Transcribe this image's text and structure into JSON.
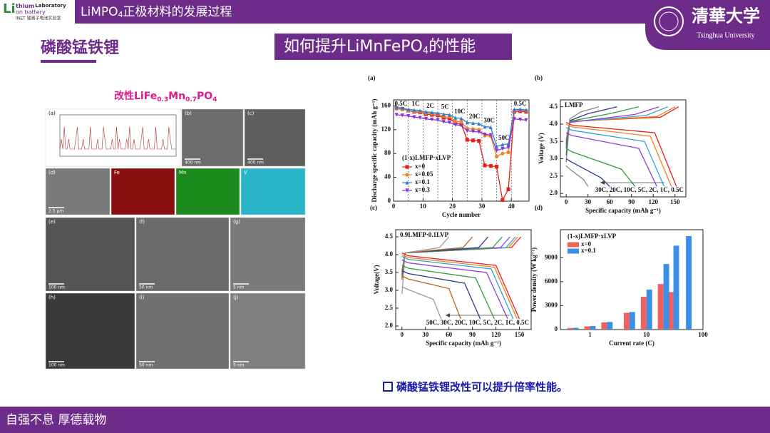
{
  "header": {
    "title_main": "LiMPO",
    "title_sub": "4",
    "title_rest": "正极材料的发展过程"
  },
  "logo": {
    "li": "Li",
    "line1": "thium",
    "line1b": "Laboratory",
    "line2": "on battery",
    "line3": "INET 锂离子电池实验室"
  },
  "university": {
    "name_cn": "清華大学",
    "name_en": "Tsinghua University"
  },
  "section_title": "磷酸锰铁锂",
  "headline": {
    "main": "如何提升LiMnFePO",
    "sub": "4",
    "rest": "的性能"
  },
  "figure_caption": {
    "p1": "改性LiFe",
    "s1": "0.3",
    "p2": "Mn",
    "s2": "0.7",
    "p3": "PO",
    "s3": "4"
  },
  "panels": [
    {
      "label": "(a)"
    },
    {
      "label": "(b)",
      "scale": "400 nm"
    },
    {
      "label": "(c)",
      "scale": "400 nm"
    },
    {
      "label": "(d)",
      "scale": "2.5 μm"
    },
    {
      "label": "Fe"
    },
    {
      "label": "Mn"
    },
    {
      "label": "V"
    },
    {
      "label": "(e)",
      "scale": "100 nm"
    },
    {
      "label": "(f)",
      "scale": "50 nm"
    },
    {
      "label": "(g)",
      "scale": "5 nm"
    },
    {
      "label": "(h)",
      "scale": "100 nm"
    },
    {
      "label": "(i)",
      "scale": "50 nm"
    },
    {
      "label": "(j)",
      "scale": "5 nm"
    }
  ],
  "conclusion": "磷酸锰铁锂改性可以提升倍率性能。",
  "footer": "自强不息 厚德载物",
  "chart_data": [
    {
      "type": "line",
      "panel": "(a)",
      "xlabel": "Cycle number",
      "ylabel": "Discharge specific capacity (mAh g⁻¹)",
      "xlim": [
        0,
        46
      ],
      "ylim": [
        0,
        170
      ],
      "xticks": [
        0,
        10,
        20,
        30,
        40
      ],
      "yticks": [
        0,
        40,
        80,
        120,
        160
      ],
      "legend_title": "(1-x)LMFP·xLVP",
      "rate_segments": [
        {
          "label": "0.5C",
          "start": 0,
          "end": 5
        },
        {
          "label": "1C",
          "start": 5,
          "end": 10
        },
        {
          "label": "2C",
          "start": 10,
          "end": 15
        },
        {
          "label": "5C",
          "start": 15,
          "end": 20
        },
        {
          "label": "10C",
          "start": 20,
          "end": 25
        },
        {
          "label": "20C",
          "start": 25,
          "end": 30
        },
        {
          "label": "30C",
          "start": 30,
          "end": 35
        },
        {
          "label": "50C",
          "start": 35,
          "end": 40
        },
        {
          "label": "0.5C",
          "start": 40,
          "end": 46
        }
      ],
      "x": [
        1,
        3,
        5,
        7,
        9,
        11,
        13,
        15,
        17,
        19,
        21,
        23,
        25,
        27,
        29,
        31,
        33,
        35,
        37,
        39,
        41,
        43,
        45
      ],
      "series": [
        {
          "name": "x=0",
          "color": "#e8201a",
          "marker": "s",
          "values": [
            156,
            155,
            152,
            150,
            149,
            146,
            145,
            144,
            140,
            139,
            131,
            129,
            103,
            102,
            101,
            60,
            59,
            58,
            2,
            20,
            150,
            151,
            150
          ]
        },
        {
          "name": "x=0.05",
          "color": "#f58220",
          "marker": "o",
          "values": [
            155,
            154,
            152,
            151,
            150,
            148,
            147,
            146,
            143,
            142,
            134,
            133,
            122,
            121,
            120,
            110,
            109,
            75,
            80,
            82,
            152,
            153,
            152
          ]
        },
        {
          "name": "x=0.1",
          "color": "#2a7fd4",
          "marker": "^",
          "values": [
            157,
            156,
            154,
            153,
            152,
            150,
            149,
            148,
            146,
            145,
            140,
            139,
            132,
            131,
            130,
            125,
            124,
            92,
            95,
            96,
            154,
            154,
            153
          ]
        },
        {
          "name": "x=0.3",
          "color": "#8b2fd6",
          "marker": "v",
          "values": [
            145,
            144,
            143,
            141,
            140,
            138,
            137,
            136,
            133,
            132,
            128,
            127,
            118,
            117,
            116,
            112,
            111,
            85,
            88,
            90,
            138,
            137,
            136
          ]
        }
      ]
    },
    {
      "type": "line",
      "panel": "(b)",
      "xlabel": "Specific capacity (mAh g⁻¹)",
      "ylabel": "Voltage (V)",
      "xlim": [
        -8,
        165
      ],
      "ylim": [
        1.9,
        4.7
      ],
      "xticks": [
        0,
        30,
        60,
        90,
        120,
        150
      ],
      "yticks": [
        {
          "value": 2,
          "label": "2.0"
        },
        2.5,
        {
          "value": 3,
          "label": "3.0"
        },
        3.5,
        {
          "value": 4,
          "label": "4.0"
        },
        4.5
      ],
      "title": "LMFP",
      "rates": "30C, 20C, 10C, 5C, 2C, 1C, 0.5C",
      "series": [
        {
          "color": "#e8201a",
          "x": [
            0,
            5,
            130,
            155
          ],
          "values": [
            3.55,
            4.08,
            4.2,
            4.5
          ]
        },
        {
          "color": "#f58220",
          "x": [
            0,
            5,
            125,
            150
          ],
          "values": [
            3.5,
            4.07,
            4.22,
            4.5
          ]
        },
        {
          "color": "#29a3dd",
          "x": [
            0,
            5,
            110,
            140
          ],
          "values": [
            3.45,
            4.06,
            4.25,
            4.5
          ]
        },
        {
          "color": "#8b3fd9",
          "x": [
            0,
            5,
            95,
            128
          ],
          "values": [
            3.4,
            4.05,
            4.28,
            4.5
          ]
        },
        {
          "color": "#2e9e3a",
          "x": [
            0,
            5,
            60,
            100
          ],
          "values": [
            3.3,
            4.08,
            4.3,
            4.5
          ]
        },
        {
          "color": "#2b3a8c",
          "x": [
            0,
            5,
            30,
            70
          ],
          "values": [
            3.1,
            4.1,
            4.3,
            4.5
          ]
        },
        {
          "color": "#888888",
          "x": [
            0,
            5,
            20,
            45
          ],
          "values": [
            2.9,
            4.15,
            4.35,
            4.5
          ]
        },
        {
          "color": "#e8201a",
          "x": [
            0,
            8,
            122,
            152
          ],
          "values": [
            4.05,
            3.97,
            3.75,
            2.2
          ]
        },
        {
          "color": "#f58220",
          "x": [
            0,
            8,
            116,
            145
          ],
          "values": [
            4.0,
            3.92,
            3.65,
            2.2
          ]
        },
        {
          "color": "#29a3dd",
          "x": [
            0,
            8,
            108,
            135
          ],
          "values": [
            3.9,
            3.82,
            3.5,
            2.2
          ]
        },
        {
          "color": "#8b3fd9",
          "x": [
            0,
            8,
            100,
            125
          ],
          "values": [
            3.75,
            3.67,
            3.3,
            2.2
          ]
        },
        {
          "color": "#2e9e3a",
          "x": [
            0,
            8,
            76,
            95
          ],
          "values": [
            3.3,
            3.2,
            2.7,
            2.2
          ]
        },
        {
          "color": "#2b3a8c",
          "x": [
            0,
            8,
            48,
            60
          ],
          "values": [
            3.0,
            2.9,
            2.45,
            2.2
          ]
        },
        {
          "color": "#888888",
          "x": [
            0,
            5,
            24,
            30
          ],
          "values": [
            2.8,
            2.7,
            2.4,
            2.2
          ]
        }
      ]
    },
    {
      "type": "line",
      "panel": "(c)",
      "xlabel": "Specific capacity (mAh g⁻¹)",
      "ylabel": "Voltage(V)",
      "xlim": [
        -8,
        165
      ],
      "ylim": [
        1.9,
        4.7
      ],
      "xticks": [
        0,
        30,
        60,
        90,
        120,
        150
      ],
      "yticks": [
        {
          "value": 2,
          "label": "2.0"
        },
        2.5,
        {
          "value": 3,
          "label": "3.0"
        },
        3.5,
        {
          "value": 4,
          "label": "4.0"
        },
        4.5
      ],
      "title": "0.9LMFP·0.1LVP",
      "rates": "50C, 30C, 20C, 10C, 5C, 2C, 1C, 0.5C",
      "series": [
        {
          "color": "#e8201a",
          "x": [
            0,
            4,
            140,
            152
          ],
          "values": [
            3.55,
            4.05,
            4.2,
            4.5
          ]
        },
        {
          "color": "#f58220",
          "x": [
            0,
            4,
            136,
            148
          ],
          "values": [
            3.5,
            4.05,
            4.2,
            4.5
          ]
        },
        {
          "color": "#29a3dd",
          "x": [
            0,
            4,
            133,
            145
          ],
          "values": [
            3.5,
            4.05,
            4.2,
            4.5
          ]
        },
        {
          "color": "#8b3fd9",
          "x": [
            0,
            4,
            126,
            138
          ],
          "values": [
            3.45,
            4.05,
            4.2,
            4.5
          ]
        },
        {
          "color": "#2e9e3a",
          "x": [
            0,
            4,
            116,
            128
          ],
          "values": [
            3.4,
            4.05,
            4.2,
            4.5
          ]
        },
        {
          "color": "#2b3a8c",
          "x": [
            0,
            4,
            98,
            110
          ],
          "values": [
            3.35,
            4.05,
            4.2,
            4.5
          ]
        },
        {
          "color": "#b5651d",
          "x": [
            0,
            4,
            78,
            90
          ],
          "values": [
            3.3,
            4.05,
            4.2,
            4.5
          ]
        },
        {
          "color": "#999999",
          "x": [
            0,
            4,
            48,
            60
          ],
          "values": [
            2.9,
            4.05,
            4.2,
            4.5
          ]
        },
        {
          "color": "#e8201a",
          "x": [
            0,
            8,
            120,
            150
          ],
          "values": [
            4.05,
            3.97,
            3.7,
            2.2
          ]
        },
        {
          "color": "#f58220",
          "x": [
            0,
            8,
            118,
            147
          ],
          "values": [
            4.0,
            3.92,
            3.65,
            2.2
          ]
        },
        {
          "color": "#29a3dd",
          "x": [
            0,
            8,
            114,
            142
          ],
          "values": [
            3.95,
            3.87,
            3.6,
            2.2
          ]
        },
        {
          "color": "#8b3fd9",
          "x": [
            0,
            8,
            108,
            135
          ],
          "values": [
            3.85,
            3.77,
            3.5,
            2.2
          ]
        },
        {
          "color": "#2e9e3a",
          "x": [
            0,
            8,
            94,
            118
          ],
          "values": [
            3.7,
            3.62,
            3.35,
            2.2
          ]
        },
        {
          "color": "#2b3a8c",
          "x": [
            0,
            8,
            80,
            100
          ],
          "values": [
            3.55,
            3.47,
            3.2,
            2.2
          ]
        },
        {
          "color": "#b5651d",
          "x": [
            0,
            8,
            60,
            75
          ],
          "values": [
            3.4,
            3.32,
            3.05,
            2.2
          ]
        },
        {
          "color": "#999999",
          "x": [
            0,
            8,
            40,
            50
          ],
          "values": [
            3.1,
            3.02,
            2.75,
            2.2
          ]
        }
      ]
    },
    {
      "type": "bar",
      "panel": "(d)",
      "xlabel": "Current rate (C)",
      "ylabel": "Power density (W kg⁻¹)",
      "xscale": "log",
      "xlim": [
        0.3,
        100
      ],
      "ylim": [
        0,
        12500
      ],
      "xticks": [
        1,
        10,
        100
      ],
      "yticks": [
        0,
        3000,
        6000,
        9000
      ],
      "legend_title": "(1-x)LMFP·xLVP",
      "x": [
        0.5,
        1,
        2,
        5,
        10,
        20,
        30,
        50
      ],
      "series": [
        {
          "name": "x=0",
          "color": "#f0605e",
          "values": [
            200,
            400,
            900,
            2100,
            4100,
            5700,
            4700,
            null
          ]
        },
        {
          "name": "x=0.1",
          "color": "#3d8fe6",
          "values": [
            220,
            450,
            950,
            2200,
            5000,
            8200,
            10500,
            11700
          ]
        }
      ]
    }
  ]
}
